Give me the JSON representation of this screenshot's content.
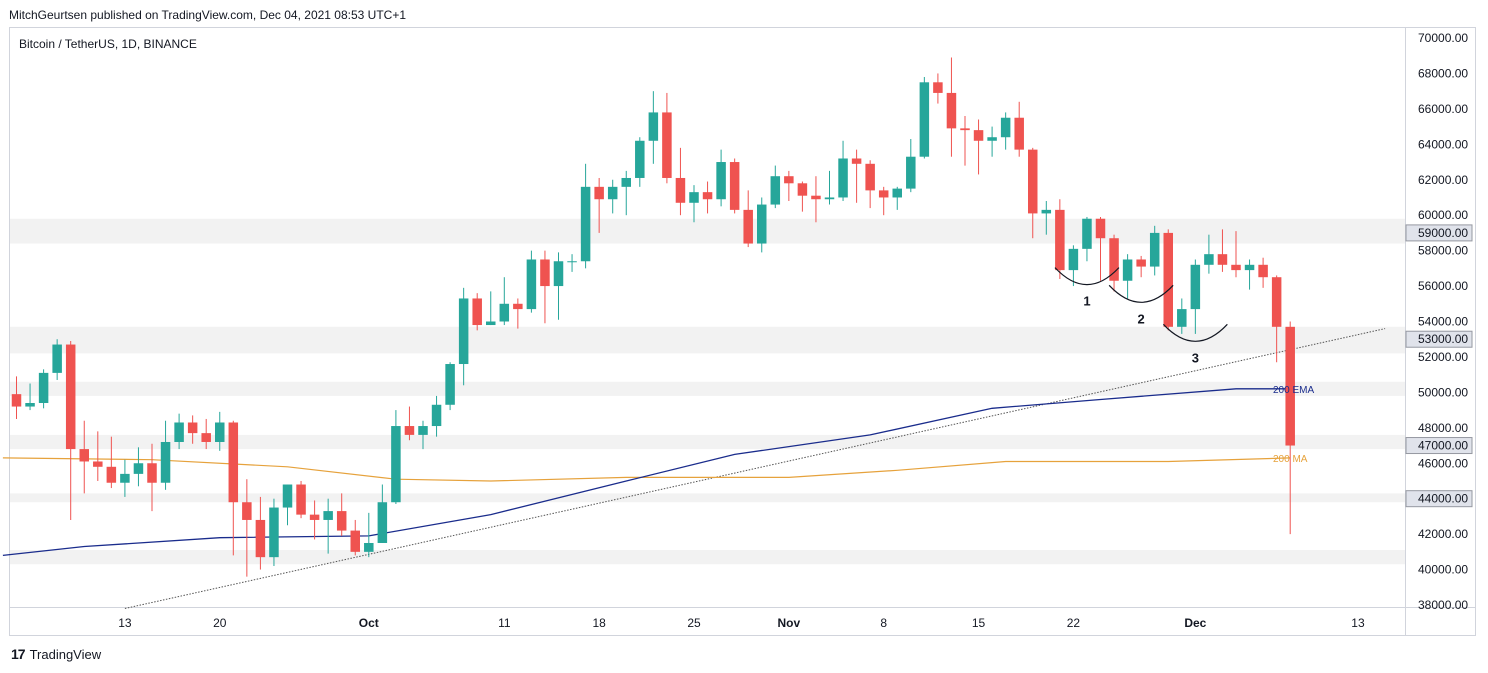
{
  "header": {
    "published": "MitchGeurtsen published on TradingView.com, Dec 04, 2021 08:53 UTC+1"
  },
  "symbol": "Bitcoin / TetherUS, 1D, BINANCE",
  "footer": {
    "brand": "TradingView",
    "logo_icon": "tradingview-logo-icon"
  },
  "colors": {
    "up": "#26a69a",
    "down": "#ef5350",
    "ema": "#1a2c8c",
    "ma": "#e6a23c",
    "zone": "#f2f2f2",
    "trend": "#555555"
  },
  "chart_data": {
    "type": "candlestick",
    "y_axis": {
      "range": [
        37800,
        70400
      ],
      "ticks": [
        "38000.00",
        "40000.00",
        "42000.00",
        "44000.00",
        "46000.00",
        "48000.00",
        "50000.00",
        "52000.00",
        "54000.00",
        "56000.00",
        "58000.00",
        "60000.00",
        "62000.00",
        "64000.00",
        "66000.00",
        "68000.00",
        "70000.00"
      ],
      "highlighted": [
        "59000.00",
        "53000.00",
        "47000.00",
        "44000.00"
      ]
    },
    "x_axis": {
      "start_date": "2021-09-05",
      "ticks": [
        {
          "label": "13",
          "day": 8
        },
        {
          "label": "20",
          "day": 15
        },
        {
          "label": "Oct",
          "day": 26
        },
        {
          "label": "11",
          "day": 36
        },
        {
          "label": "18",
          "day": 43
        },
        {
          "label": "25",
          "day": 50
        },
        {
          "label": "Nov",
          "day": 57
        },
        {
          "label": "8",
          "day": 64
        },
        {
          "label": "15",
          "day": 71
        },
        {
          "label": "22",
          "day": 78
        },
        {
          "label": "Dec",
          "day": 87
        },
        {
          "label": "13",
          "day": 99
        }
      ]
    },
    "zones": [
      {
        "low": 58400,
        "high": 59800
      },
      {
        "low": 52200,
        "high": 53700
      },
      {
        "low": 49800,
        "high": 50600
      },
      {
        "low": 46800,
        "high": 47600
      },
      {
        "low": 43800,
        "high": 44300
      },
      {
        "low": 40300,
        "high": 41100
      }
    ],
    "candles": [
      [
        49900,
        50900,
        48500,
        49200
      ],
      [
        49200,
        50500,
        49000,
        49400
      ],
      [
        49400,
        51300,
        49100,
        51100
      ],
      [
        51100,
        53000,
        50700,
        52700
      ],
      [
        52700,
        52900,
        42800,
        46800
      ],
      [
        46800,
        48400,
        44300,
        46100
      ],
      [
        46100,
        47800,
        45000,
        45800
      ],
      [
        45800,
        47500,
        44600,
        44900
      ],
      [
        44900,
        46200,
        44100,
        45400
      ],
      [
        45400,
        46900,
        44700,
        46000
      ],
      [
        46000,
        47100,
        43300,
        44900
      ],
      [
        44900,
        48400,
        44500,
        47200
      ],
      [
        47200,
        48800,
        46800,
        48300
      ],
      [
        48300,
        48700,
        47100,
        47700
      ],
      [
        47700,
        48500,
        46800,
        47200
      ],
      [
        47200,
        48900,
        46700,
        48300
      ],
      [
        48300,
        48400,
        40800,
        43800
      ],
      [
        43800,
        45100,
        39600,
        42800
      ],
      [
        42800,
        44100,
        40000,
        40700
      ],
      [
        40700,
        44000,
        40200,
        43500
      ],
      [
        43500,
        44800,
        42500,
        44800
      ],
      [
        44800,
        45000,
        42900,
        43100
      ],
      [
        43100,
        43900,
        41700,
        42800
      ],
      [
        42800,
        44000,
        40900,
        43300
      ],
      [
        43300,
        44300,
        41900,
        42200
      ],
      [
        42200,
        42800,
        40800,
        41000
      ],
      [
        41000,
        43200,
        40700,
        41500
      ],
      [
        41500,
        44800,
        41500,
        43800
      ],
      [
        43800,
        49000,
        43700,
        48100
      ],
      [
        48100,
        49200,
        47300,
        47600
      ],
      [
        47600,
        48400,
        46800,
        48100
      ],
      [
        48100,
        49800,
        47500,
        49300
      ],
      [
        49300,
        51700,
        49000,
        51600
      ],
      [
        51600,
        55900,
        50400,
        55300
      ],
      [
        55300,
        55600,
        53500,
        53800
      ],
      [
        53800,
        55700,
        53800,
        54000
      ],
      [
        54000,
        56500,
        53800,
        55000
      ],
      [
        55000,
        55300,
        53600,
        54700
      ],
      [
        54700,
        58000,
        54500,
        57500
      ],
      [
        57500,
        58000,
        53900,
        56000
      ],
      [
        56000,
        57900,
        54100,
        57400
      ],
      [
        57400,
        57800,
        56800,
        57400
      ],
      [
        57400,
        62900,
        57000,
        61600
      ],
      [
        61600,
        62100,
        59000,
        60900
      ],
      [
        60900,
        62000,
        60100,
        61600
      ],
      [
        61600,
        62500,
        60000,
        62100
      ],
      [
        62100,
        64400,
        61600,
        64200
      ],
      [
        64200,
        67000,
        62900,
        65800
      ],
      [
        65800,
        66900,
        61800,
        62100
      ],
      [
        62100,
        63800,
        60000,
        60700
      ],
      [
        60700,
        61700,
        59600,
        61300
      ],
      [
        61300,
        61900,
        60100,
        60900
      ],
      [
        60900,
        63700,
        60500,
        63000
      ],
      [
        63000,
        63200,
        60100,
        60300
      ],
      [
        60300,
        61400,
        58200,
        58400
      ],
      [
        58400,
        61000,
        57900,
        60600
      ],
      [
        60600,
        62800,
        60400,
        62200
      ],
      [
        62200,
        62500,
        60800,
        61800
      ],
      [
        61800,
        61900,
        60200,
        61100
      ],
      [
        61100,
        62200,
        59600,
        60900
      ],
      [
        60900,
        62500,
        60600,
        61000
      ],
      [
        61000,
        64200,
        60800,
        63200
      ],
      [
        63200,
        63700,
        60700,
        62900
      ],
      [
        62900,
        63100,
        60400,
        61400
      ],
      [
        61400,
        61600,
        60000,
        61000
      ],
      [
        61000,
        61600,
        60300,
        61500
      ],
      [
        61500,
        64300,
        61300,
        63300
      ],
      [
        63300,
        67800,
        63200,
        67500
      ],
      [
        67500,
        68000,
        66300,
        66900
      ],
      [
        66900,
        68900,
        63300,
        64900
      ],
      [
        64900,
        65600,
        62800,
        64800
      ],
      [
        64800,
        65400,
        62300,
        64200
      ],
      [
        64200,
        65000,
        63300,
        64400
      ],
      [
        64400,
        65800,
        63700,
        65500
      ],
      [
        65500,
        66400,
        63300,
        63700
      ],
      [
        63700,
        63800,
        58700,
        60100
      ],
      [
        60100,
        60800,
        58900,
        60300
      ],
      [
        60300,
        60900,
        56400,
        56900
      ],
      [
        56900,
        58300,
        56000,
        58100
      ],
      [
        58100,
        59900,
        57400,
        59800
      ],
      [
        59800,
        59900,
        56300,
        58700
      ],
      [
        58700,
        58900,
        55700,
        56300
      ],
      [
        56300,
        57800,
        55300,
        57500
      ],
      [
        57500,
        57700,
        56500,
        57100
      ],
      [
        57100,
        59400,
        56600,
        59000
      ],
      [
        59000,
        59200,
        53500,
        53700
      ],
      [
        53700,
        55300,
        53300,
        54700
      ],
      [
        54700,
        57500,
        53300,
        57200
      ],
      [
        57200,
        58900,
        56700,
        57800
      ],
      [
        57800,
        59200,
        56800,
        57200
      ],
      [
        57200,
        59100,
        56500,
        56900
      ],
      [
        56900,
        57500,
        55800,
        57200
      ],
      [
        57200,
        57600,
        55900,
        56500
      ],
      [
        56500,
        56600,
        51700,
        53700
      ],
      [
        53700,
        54000,
        42000,
        47000
      ]
    ],
    "ema200": {
      "label": "200 EMA",
      "points": [
        [
          -1,
          40800
        ],
        [
          5,
          41300
        ],
        [
          15,
          41800
        ],
        [
          26,
          41900
        ],
        [
          35,
          43100
        ],
        [
          45,
          45000
        ],
        [
          53,
          46500
        ],
        [
          63,
          47600
        ],
        [
          72,
          49100
        ],
        [
          80,
          49600
        ],
        [
          90,
          50200
        ],
        [
          94,
          50200
        ]
      ]
    },
    "ma200": {
      "label": "200 MA",
      "points": [
        [
          -1,
          46300
        ],
        [
          10,
          46200
        ],
        [
          20,
          45800
        ],
        [
          28,
          45100
        ],
        [
          35,
          45000
        ],
        [
          45,
          45200
        ],
        [
          57,
          45200
        ],
        [
          65,
          45600
        ],
        [
          73,
          46100
        ],
        [
          85,
          46100
        ],
        [
          94,
          46300
        ]
      ]
    },
    "trendline": {
      "points": [
        [
          8,
          37800
        ],
        [
          101,
          53600
        ]
      ]
    },
    "annotations": [
      {
        "label": "1",
        "day": 79,
        "price": 55800
      },
      {
        "label": "2",
        "day": 83,
        "price": 54800
      },
      {
        "label": "3",
        "day": 87,
        "price": 52600
      }
    ]
  }
}
